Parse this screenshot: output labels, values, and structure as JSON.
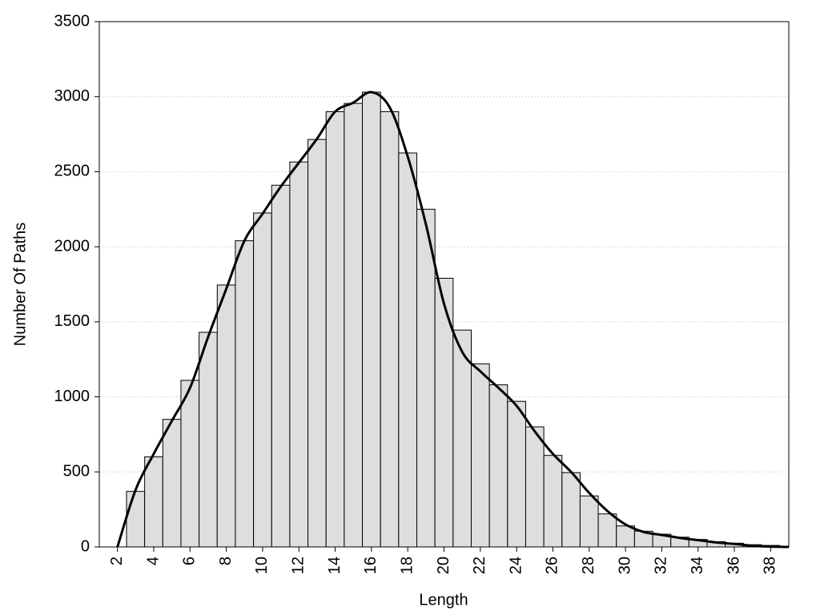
{
  "chart_data": {
    "type": "histogram",
    "x_label": "Length",
    "y_label": "Number Of Paths",
    "bins": [
      2.5,
      3.5,
      4.5,
      5.5,
      6.5,
      7.5,
      8.5,
      9.5,
      10.5,
      11.5,
      12.5,
      13.5,
      14.5,
      15.5,
      16.5,
      17.5,
      18.5,
      19.5,
      20.5,
      21.5,
      22.5,
      23.5,
      24.5,
      25.5,
      26.5,
      27.5,
      28.5,
      29.5,
      30.5,
      31.5,
      32.5,
      33.5,
      34.5,
      35.5,
      36.5,
      37.5,
      38.5
    ],
    "values": [
      370,
      600,
      850,
      1110,
      1430,
      1745,
      2040,
      2225,
      2410,
      2565,
      2715,
      2900,
      2955,
      3030,
      2900,
      2625,
      2250,
      1790,
      1445,
      1220,
      1080,
      970,
      800,
      610,
      495,
      340,
      220,
      140,
      105,
      85,
      65,
      50,
      35,
      25,
      15,
      10
    ],
    "color": "#dedede",
    "line": {
      "type": "line",
      "color": "#000000",
      "x": [
        2,
        3,
        4,
        5,
        6,
        7,
        8,
        9,
        10,
        11,
        12,
        13,
        14,
        15,
        16,
        17,
        18,
        19,
        20,
        21,
        22,
        23,
        24,
        25,
        26,
        27,
        28,
        29,
        30,
        31,
        32,
        33,
        34,
        35,
        36,
        37,
        38,
        39
      ],
      "values": [
        0,
        380,
        620,
        840,
        1060,
        1400,
        1720,
        2040,
        2220,
        2400,
        2560,
        2720,
        2900,
        2960,
        3030,
        2930,
        2600,
        2150,
        1620,
        1300,
        1170,
        1060,
        940,
        770,
        620,
        500,
        360,
        240,
        150,
        100,
        80,
        60,
        45,
        30,
        20,
        8,
        2,
        0
      ]
    },
    "xlim": [
      1,
      39
    ],
    "xticks": [
      2,
      4,
      6,
      8,
      10,
      12,
      14,
      16,
      18,
      20,
      22,
      24,
      26,
      28,
      30,
      32,
      34,
      36,
      38
    ],
    "ylim": [
      0,
      3500
    ],
    "yticks": [
      0,
      500,
      1000,
      1500,
      2000,
      2500,
      3000,
      3500
    ],
    "grid": true
  }
}
